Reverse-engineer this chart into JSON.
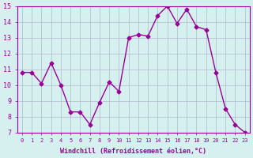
{
  "x": [
    0,
    1,
    2,
    3,
    4,
    5,
    6,
    7,
    8,
    9,
    10,
    11,
    12,
    13,
    14,
    15,
    16,
    17,
    18,
    19,
    20,
    21,
    22,
    23
  ],
  "y": [
    10.8,
    10.8,
    10.1,
    11.4,
    10.0,
    8.3,
    8.3,
    7.5,
    8.9,
    10.2,
    9.6,
    13.0,
    13.2,
    13.1,
    14.4,
    15.0,
    13.9,
    14.8,
    13.7,
    13.5,
    10.8,
    8.5,
    7.5,
    7.0
  ],
  "line_color": "#990099",
  "marker": "D",
  "marker_size": 2.5,
  "bg_color": "#d6f0f0",
  "grid_color": "#b0b8cc",
  "xlabel": "Windchill (Refroidissement éolien,°C)",
  "xlabel_color": "#990099",
  "tick_color": "#990099",
  "ylim": [
    7,
    15
  ],
  "xlim_min": -0.5,
  "xlim_max": 23.5,
  "yticks": [
    7,
    8,
    9,
    10,
    11,
    12,
    13,
    14,
    15
  ],
  "xticks": [
    0,
    1,
    2,
    3,
    4,
    5,
    6,
    7,
    8,
    9,
    10,
    11,
    12,
    13,
    14,
    15,
    16,
    17,
    18,
    19,
    20,
    21,
    22,
    23
  ]
}
